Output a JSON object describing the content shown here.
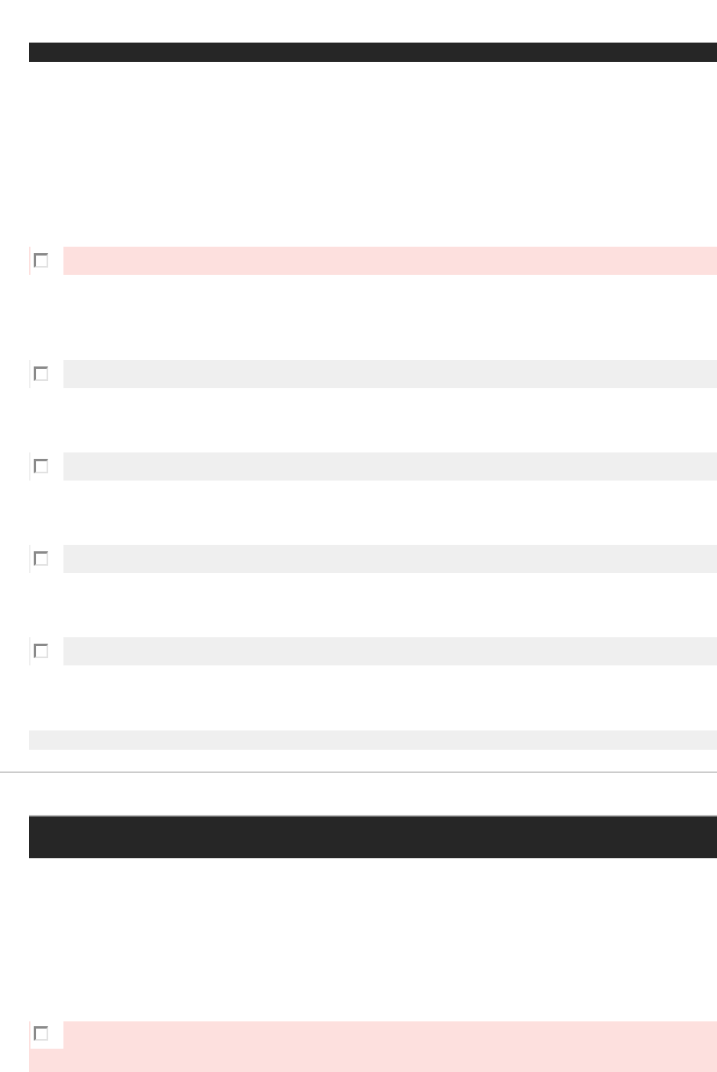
{
  "colors": {
    "header_bar": "#262626",
    "error_row": "#fde0de",
    "neutral_row": "#efefef",
    "divider": "#cccccc"
  },
  "section1": {
    "rows": [
      {
        "state": "error",
        "checked": false
      },
      {
        "state": "neutral",
        "checked": false
      },
      {
        "state": "neutral",
        "checked": false
      },
      {
        "state": "neutral",
        "checked": false
      },
      {
        "state": "neutral",
        "checked": false
      }
    ]
  },
  "section2": {
    "rows": [
      {
        "state": "error",
        "checked": false
      }
    ]
  }
}
